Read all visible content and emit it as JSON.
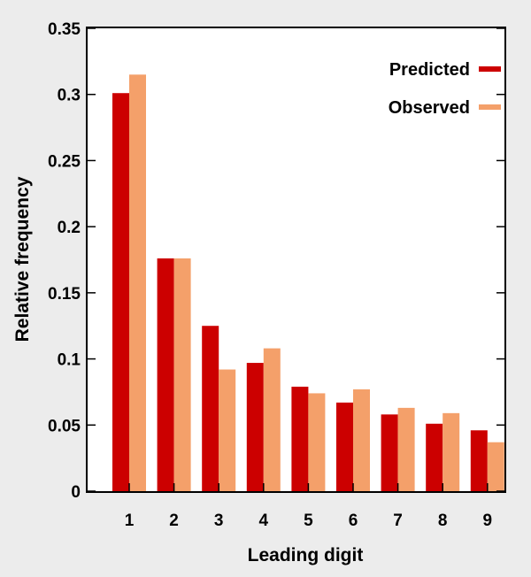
{
  "chart_data": {
    "type": "bar",
    "title": "",
    "xlabel": "Leading digit",
    "ylabel": "Relative frequency",
    "categories": [
      "1",
      "2",
      "3",
      "4",
      "5",
      "6",
      "7",
      "8",
      "9"
    ],
    "series": [
      {
        "name": "Predicted",
        "color": "#cc0000",
        "values": [
          0.301,
          0.176,
          0.125,
          0.097,
          0.079,
          0.067,
          0.058,
          0.051,
          0.046
        ]
      },
      {
        "name": "Observed",
        "color": "#f4a06a",
        "values": [
          0.315,
          0.176,
          0.092,
          0.108,
          0.074,
          0.077,
          0.063,
          0.059,
          0.037
        ]
      }
    ],
    "ylim": [
      0,
      0.35
    ],
    "yticks": [
      0,
      0.05,
      0.1,
      0.15,
      0.2,
      0.25,
      0.3,
      0.35
    ],
    "ytick_labels": [
      "0",
      "0.05",
      "0.1",
      "0.15",
      "0.2",
      "0.25",
      "0.3",
      "0.35"
    ],
    "grid": false,
    "legend_position": "top-right",
    "background_color": "#ececec",
    "plot_background": "#ffffff"
  }
}
